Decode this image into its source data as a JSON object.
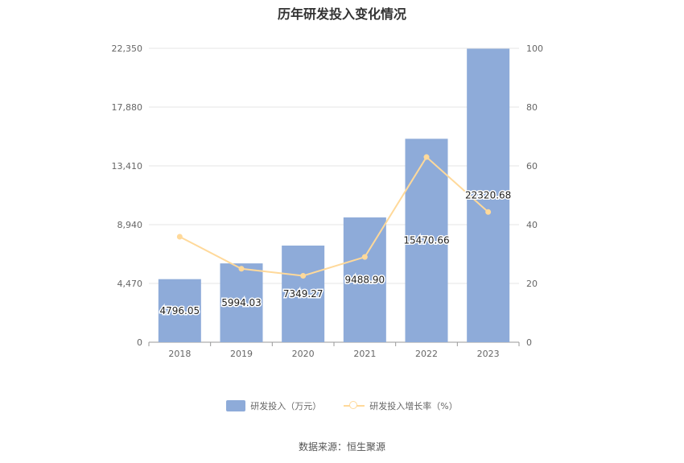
{
  "chart_data": {
    "type": "bar",
    "title": "历年研发投入变化情况",
    "categories": [
      "2018",
      "2019",
      "2020",
      "2021",
      "2022",
      "2023"
    ],
    "series": [
      {
        "name": "研发投入（万元）",
        "type": "bar",
        "axis": "left",
        "values": [
          4796.05,
          5994.03,
          7349.27,
          9488.9,
          15470.66,
          22320.68
        ],
        "labels": [
          "4796.05",
          "5994.03",
          "7349.27",
          "9488.90",
          "15470.66",
          "22320.68"
        ],
        "color": "#8eabd9"
      },
      {
        "name": "研发投入增长率（%）",
        "type": "line",
        "axis": "right",
        "values": [
          35.9,
          25.0,
          22.6,
          29.0,
          63.0,
          44.3
        ],
        "color": "#ffd99a"
      }
    ],
    "y_left": {
      "ylim": [
        0,
        22350
      ],
      "ticks": [
        "0",
        "4,470",
        "8,940",
        "13,410",
        "17,880",
        "22,350"
      ]
    },
    "y_right": {
      "ylim": [
        0,
        100
      ],
      "ticks": [
        "0",
        "20",
        "40",
        "60",
        "80",
        "100"
      ]
    },
    "grid": true,
    "legend_position": "bottom"
  },
  "source": "数据来源：恒生聚源"
}
